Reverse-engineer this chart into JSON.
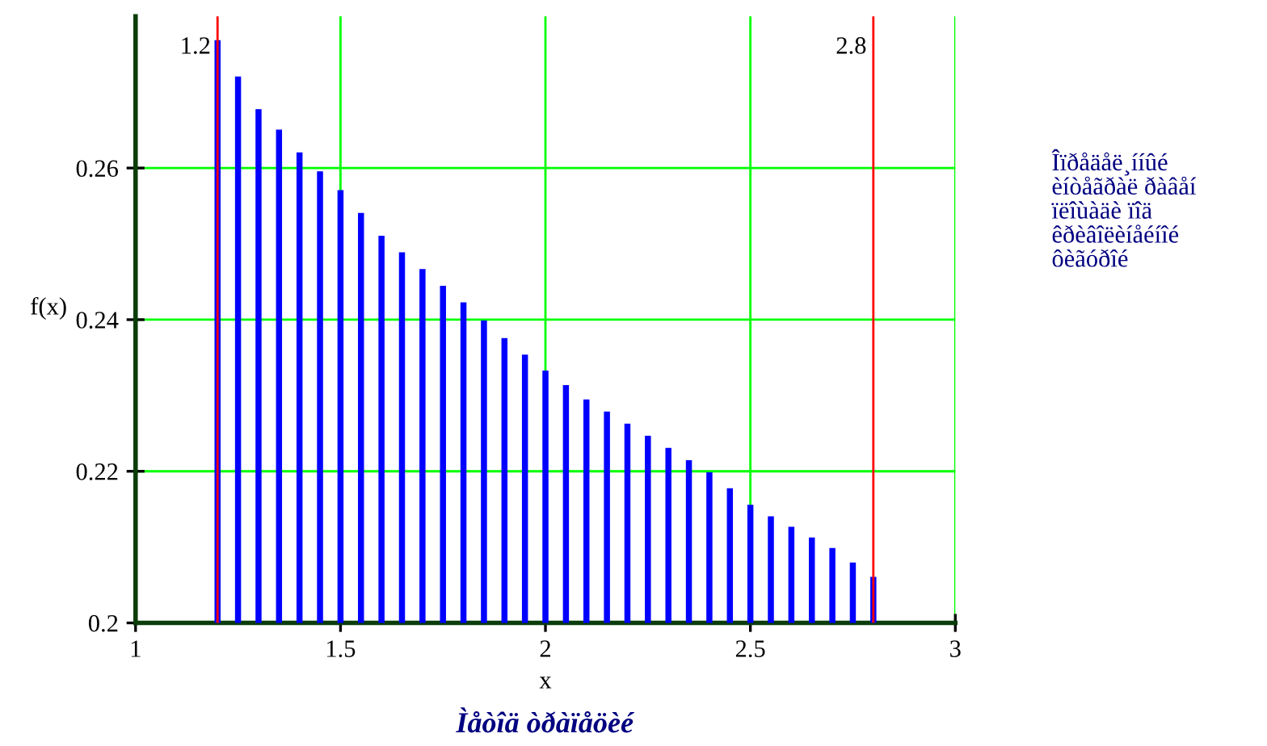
{
  "chart_data": {
    "type": "bar",
    "title": "Ìåòîä òðàïåöèé",
    "xlabel": "x",
    "ylabel": "f(x)",
    "x": [
      1.2,
      1.25,
      1.3,
      1.35,
      1.4,
      1.45,
      1.5,
      1.55,
      1.6,
      1.65,
      1.7,
      1.75,
      1.8,
      1.85,
      1.9,
      1.95,
      2.0,
      2.05,
      2.1,
      2.15,
      2.2,
      2.25,
      2.3,
      2.35,
      2.4,
      2.45,
      2.5,
      2.55,
      2.6,
      2.65,
      2.7,
      2.75,
      2.8
    ],
    "values": [
      0.2768,
      0.272,
      0.2677,
      0.265,
      0.262,
      0.2595,
      0.257,
      0.254,
      0.251,
      0.2488,
      0.2466,
      0.2444,
      0.2422,
      0.2398,
      0.2375,
      0.2353,
      0.2332,
      0.2313,
      0.2294,
      0.2278,
      0.2262,
      0.2246,
      0.223,
      0.2214,
      0.2198,
      0.2177,
      0.2155,
      0.214,
      0.2126,
      0.2112,
      0.2098,
      0.2079,
      0.206
    ],
    "color": "#0000ff",
    "xlim": [
      1,
      3
    ],
    "xticks": [
      1,
      1.5,
      2,
      2.5,
      3
    ],
    "ylim": [
      0.2,
      0.28
    ],
    "yticks": [
      0.2,
      0.22,
      0.24,
      0.26
    ],
    "grid": true,
    "ref_lines": [
      {
        "axis": "x",
        "value": 1.2,
        "label": "1.2",
        "color": "#ff0000"
      },
      {
        "axis": "x",
        "value": 2.8,
        "label": "2.8",
        "color": "#ff0000"
      }
    ],
    "annotations": [
      "Îïðåäåë¸ííûé\nèíòåãðàë ðàâåí\nïëîùàäè ïîä\nêðèâîëèíåéíîé\nôèãóðîé"
    ]
  }
}
